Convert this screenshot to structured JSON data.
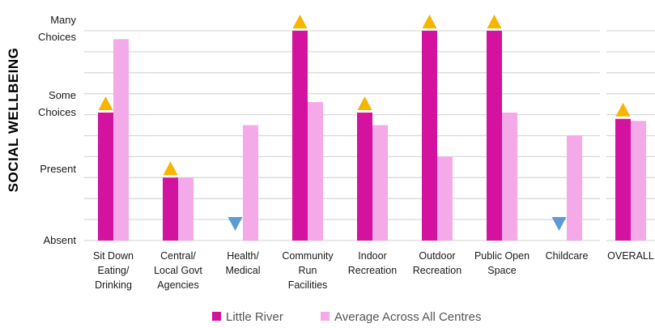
{
  "chart_data": {
    "type": "bar",
    "ylabel": "SOCIAL WELLBEING",
    "xlabel": "",
    "ylim": [
      0,
      10
    ],
    "y_ticks": [
      {
        "value": 0,
        "lines": [
          "Absent"
        ]
      },
      {
        "value": 3.4,
        "lines": [
          "Present"
        ]
      },
      {
        "value": 6.1,
        "lines": [
          "Some",
          "Choices"
        ]
      },
      {
        "value": 9.7,
        "lines": [
          "Many",
          "Choices"
        ]
      }
    ],
    "grid": true,
    "legend_position": "bottom",
    "categories": [
      "Sit Down Eating/ Drinking",
      "Central/ Local Govt Agencies",
      "Health/ Medical",
      "Community Run Facilities",
      "Indoor Recreation",
      "Outdoor Recreation",
      "Public Open Space",
      "Childcare",
      "OVERALL"
    ],
    "category_lines": [
      [
        "Sit Down",
        "Eating/",
        "Drinking"
      ],
      [
        "Central/",
        "Local Govt",
        "Agencies"
      ],
      [
        "Health/",
        "Medical"
      ],
      [
        "Community",
        "Run",
        "Facilities"
      ],
      [
        "Indoor",
        "Recreation"
      ],
      [
        "Outdoor",
        "Recreation"
      ],
      [
        "Public Open",
        "Space"
      ],
      [
        "Childcare"
      ],
      [
        "OVERALL"
      ]
    ],
    "series": [
      {
        "name": "Little River",
        "color": "#d312a0",
        "values": [
          6.1,
          3.0,
          0,
          10,
          6.1,
          10,
          10,
          0,
          5.8
        ]
      },
      {
        "name": "Average Across All Centres",
        "color": "#f4a9e8",
        "values": [
          9.6,
          3.0,
          5.5,
          6.6,
          5.5,
          4.0,
          6.1,
          5.0,
          5.7
        ]
      }
    ],
    "markers": [
      "up",
      "up",
      "down",
      "up",
      "up",
      "up",
      "up",
      "down",
      "up"
    ],
    "marker_colors": {
      "up": "#f7b500",
      "down": "#5b9bd5"
    }
  }
}
